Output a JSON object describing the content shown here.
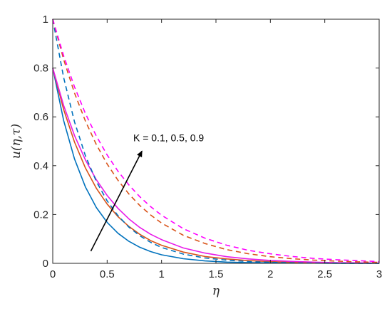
{
  "chart_data": {
    "type": "line",
    "xlabel": "η",
    "ylabel": "u(η,τ)",
    "xlim": [
      0,
      3
    ],
    "ylim": [
      0,
      1
    ],
    "x_ticks": [
      "0",
      "0.5",
      "1",
      "1.5",
      "2",
      "2.5",
      "3"
    ],
    "y_ticks": [
      "0",
      "0.2",
      "0.4",
      "0.6",
      "0.8",
      "1"
    ],
    "grid": false,
    "annotation": {
      "text": "K = 0.1, 0.5, 0.9",
      "arrow_from": [
        0.35,
        0.05
      ],
      "arrow_to": [
        0.82,
        0.46
      ]
    },
    "x": [
      0,
      0.1,
      0.2,
      0.3,
      0.4,
      0.5,
      0.6,
      0.7,
      0.8,
      0.9,
      1.0,
      1.2,
      1.4,
      1.6,
      1.8,
      2.0,
      2.2,
      2.4,
      2.6,
      2.8,
      3.0
    ],
    "series": [
      {
        "color": "#0072BD",
        "dash": "solid",
        "values": [
          0.8,
          0.585,
          0.428,
          0.313,
          0.229,
          0.168,
          0.123,
          0.09,
          0.066,
          0.048,
          0.035,
          0.019,
          0.01,
          0.005,
          0.003,
          0.002,
          0.001,
          0.001,
          0.0,
          0.0,
          0.0
        ]
      },
      {
        "color": "#D95319",
        "dash": "solid",
        "values": [
          0.8,
          0.63,
          0.497,
          0.391,
          0.308,
          0.243,
          0.191,
          0.151,
          0.119,
          0.093,
          0.074,
          0.046,
          0.028,
          0.018,
          0.011,
          0.007,
          0.004,
          0.003,
          0.002,
          0.001,
          0.001
        ]
      },
      {
        "color": "#E81BE8",
        "dash": "solid",
        "values": [
          0.8,
          0.647,
          0.524,
          0.424,
          0.343,
          0.278,
          0.225,
          0.182,
          0.147,
          0.119,
          0.097,
          0.063,
          0.042,
          0.027,
          0.018,
          0.012,
          0.008,
          0.005,
          0.003,
          0.002,
          0.001
        ]
      },
      {
        "color": "#0072BD",
        "dash": "dashed",
        "values": [
          1.0,
          0.761,
          0.58,
          0.441,
          0.336,
          0.256,
          0.195,
          0.148,
          0.113,
          0.086,
          0.065,
          0.038,
          0.022,
          0.013,
          0.007,
          0.004,
          0.002,
          0.001,
          0.001,
          0.0,
          0.0
        ]
      },
      {
        "color": "#D95319",
        "dash": "dashed",
        "values": [
          1.0,
          0.835,
          0.698,
          0.583,
          0.487,
          0.407,
          0.34,
          0.284,
          0.237,
          0.198,
          0.165,
          0.115,
          0.081,
          0.056,
          0.039,
          0.027,
          0.019,
          0.013,
          0.009,
          0.006,
          0.004
        ]
      },
      {
        "color": "#FF00FF",
        "dash": "dashed",
        "values": [
          1.0,
          0.85,
          0.723,
          0.614,
          0.522,
          0.444,
          0.377,
          0.321,
          0.273,
          0.232,
          0.197,
          0.142,
          0.103,
          0.074,
          0.053,
          0.039,
          0.028,
          0.02,
          0.015,
          0.011,
          0.007
        ]
      }
    ]
  }
}
